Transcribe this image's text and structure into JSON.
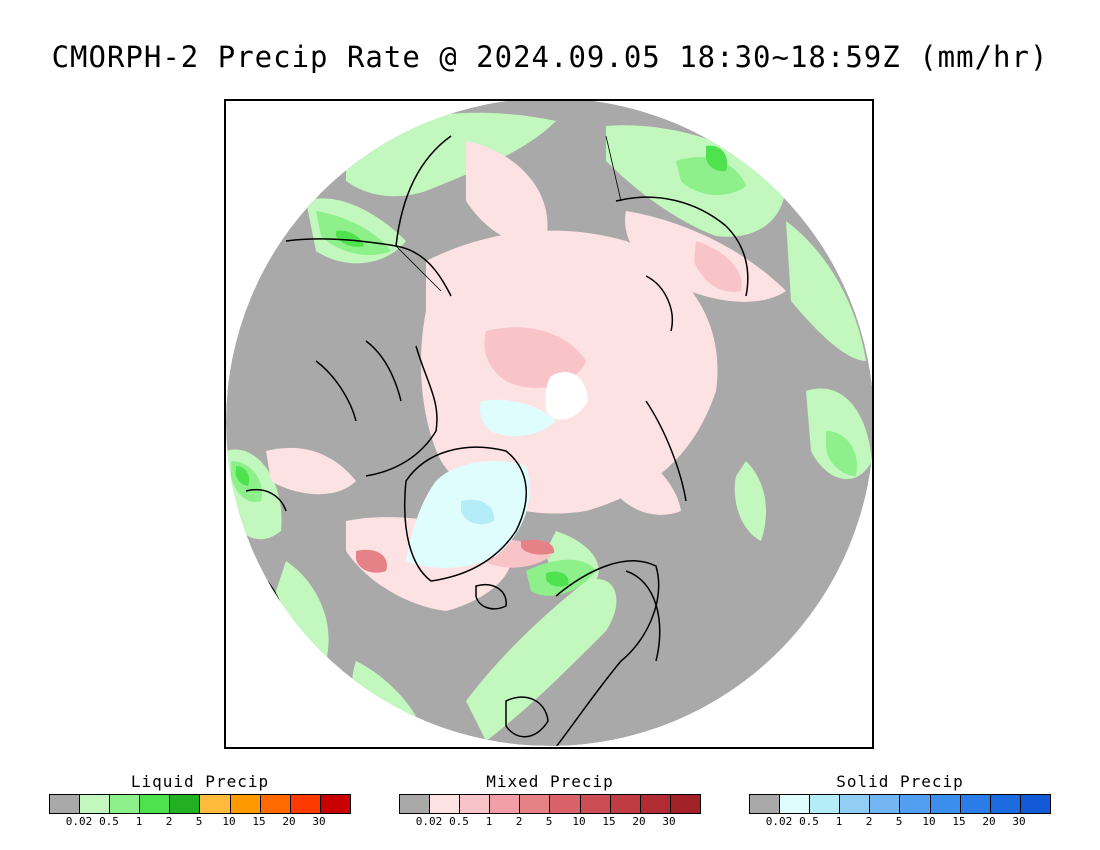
{
  "title": "CMORPH-2 Precip Rate @ 2024.09.05 18:30~18:59Z (mm/hr)",
  "map": {
    "projection": "north polar stereographic",
    "no_data_color": "#a9a9a9"
  },
  "legends": [
    {
      "title": "Liquid Precip",
      "colors": [
        "#a9a9a9",
        "#c2f7bd",
        "#8ef08a",
        "#4ee24e",
        "#22b022",
        "#fdba3c",
        "#fe9a00",
        "#fe6a00",
        "#fe3a00",
        "#c80000"
      ],
      "ticks": [
        "0.02",
        "0.5",
        "1",
        "2",
        "5",
        "10",
        "15",
        "20",
        "30"
      ]
    },
    {
      "title": "Mixed Precip",
      "colors": [
        "#a9a9a9",
        "#fde2e4",
        "#f8c4c8",
        "#f0a0a6",
        "#e58288",
        "#d96268",
        "#cc4e54",
        "#be3c42",
        "#b02c32",
        "#a22228"
      ],
      "ticks": [
        "0.02",
        "0.5",
        "1",
        "2",
        "5",
        "10",
        "15",
        "20",
        "30"
      ]
    },
    {
      "title": "Solid Precip",
      "colors": [
        "#a9a9a9",
        "#e0fdfd",
        "#b4ecf8",
        "#92cdf6",
        "#74b6f2",
        "#529ef0",
        "#3c8eec",
        "#2a7ce6",
        "#1c6ae0",
        "#125ad6"
      ],
      "ticks": [
        "0.02",
        "0.5",
        "1",
        "2",
        "5",
        "10",
        "15",
        "20",
        "30"
      ]
    }
  ]
}
